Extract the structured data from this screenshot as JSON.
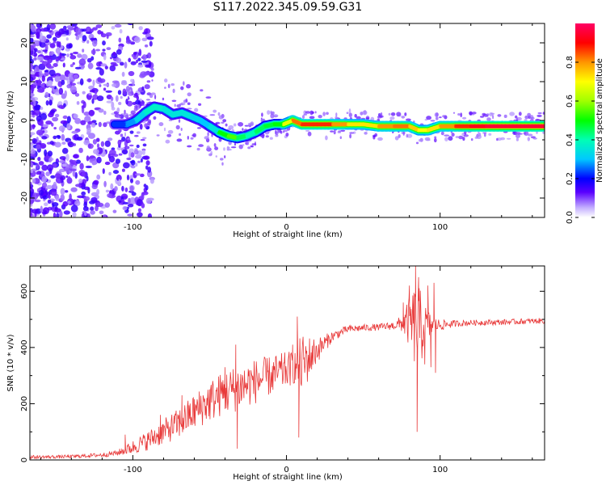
{
  "title": "S117.2022.345.09.59.G31",
  "colors": {
    "signal": "#ff0000",
    "snr_line": "#e83a3a",
    "axis": "#000000"
  },
  "chart_data": [
    {
      "type": "heatmap",
      "xlabel": "Height of straight line (km)",
      "ylabel": "Frequency (Hz)",
      "xlim": [
        -167,
        168
      ],
      "ylim": [
        -25,
        25
      ],
      "x_ticks": [
        -100,
        0,
        100
      ],
      "y_ticks": [
        -20,
        -10,
        0,
        10,
        20
      ],
      "colorbar": {
        "label": "Normalized spectral amplitude",
        "range": [
          0,
          1
        ],
        "ticks": [
          "0.0",
          "0.2",
          "0.4",
          "0.6",
          "0.8"
        ]
      },
      "ridge": {
        "x": [
          -112,
          -104,
          -98,
          -92,
          -86,
          -80,
          -74,
          -68,
          -62,
          -56,
          -50,
          -44,
          -38,
          -32,
          -26,
          -20,
          -14,
          -8,
          -2,
          4,
          10,
          20,
          30,
          40,
          50,
          60,
          70,
          80,
          86,
          92,
          100,
          110,
          120,
          130,
          140,
          150,
          160,
          168
        ],
        "y": [
          -1,
          -1,
          0,
          2,
          3.5,
          3,
          1.5,
          2,
          1,
          0,
          -1.5,
          -3,
          -4,
          -4.5,
          -4,
          -3,
          -1.5,
          -1,
          -1,
          0,
          -1,
          -1,
          -1,
          -1,
          -1,
          -1.5,
          -1.5,
          -1.5,
          -2.5,
          -2.5,
          -1.5,
          -1.5,
          -1.5,
          -1.5,
          -1.5,
          -1.5,
          -1.5,
          -1.5
        ],
        "amplitude": [
          0.2,
          0.25,
          0.3,
          0.35,
          0.4,
          0.35,
          0.35,
          0.35,
          0.35,
          0.3,
          0.3,
          0.4,
          0.6,
          0.5,
          0.4,
          0.4,
          0.5,
          0.45,
          0.55,
          0.8,
          0.85,
          0.9,
          0.85,
          0.75,
          0.7,
          0.75,
          0.85,
          0.8,
          0.7,
          0.7,
          0.75,
          0.85,
          0.9,
          0.95,
          0.95,
          0.95,
          0.95,
          0.95
        ]
      }
    },
    {
      "type": "line",
      "xlabel": "Height of straight line (km)",
      "ylabel": "SNR (10 * v/v)",
      "xlim": [
        -167,
        168
      ],
      "ylim": [
        0,
        690
      ],
      "x_ticks": [
        -100,
        0,
        100
      ],
      "y_ticks": [
        0,
        200,
        400,
        600
      ],
      "series": [
        {
          "x": [
            -167,
            -140,
            -120,
            -110,
            -100,
            -90,
            -80,
            -70,
            -60,
            -50,
            -40,
            -30,
            -20,
            -10,
            0,
            5,
            10,
            20,
            30,
            40,
            50,
            60,
            70,
            75,
            80,
            85,
            90,
            95,
            100,
            110,
            120,
            140,
            168
          ],
          "y": [
            10,
            12,
            18,
            25,
            45,
            70,
            100,
            130,
            170,
            210,
            240,
            260,
            280,
            300,
            320,
            330,
            340,
            390,
            440,
            465,
            470,
            472,
            478,
            485,
            490,
            470,
            470,
            480,
            480,
            485,
            488,
            490,
            495
          ],
          "noise": [
            6,
            6,
            8,
            10,
            25,
            35,
            45,
            55,
            65,
            75,
            80,
            85,
            80,
            70,
            65,
            60,
            110,
            45,
            18,
            14,
            12,
            12,
            15,
            30,
            90,
            170,
            90,
            30,
            20,
            12,
            10,
            10,
            10
          ],
          "spikes": [
            {
              "x": -105,
              "y": 90
            },
            {
              "x": -82,
              "y": 160
            },
            {
              "x": -68,
              "y": 230
            },
            {
              "x": -60,
              "y": 190
            },
            {
              "x": -44,
              "y": 280
            },
            {
              "x": -40,
              "y": 330
            },
            {
              "x": -33,
              "y": 410
            },
            {
              "x": -32,
              "y": 40
            },
            {
              "x": -22,
              "y": 300
            },
            {
              "x": -13,
              "y": 300
            },
            {
              "x": -5,
              "y": 320
            },
            {
              "x": 4,
              "y": 410
            },
            {
              "x": 7,
              "y": 510
            },
            {
              "x": 8,
              "y": 80
            },
            {
              "x": 76,
              "y": 560
            },
            {
              "x": 80,
              "y": 620
            },
            {
              "x": 84,
              "y": 690
            },
            {
              "x": 85,
              "y": 100
            },
            {
              "x": 86,
              "y": 650
            },
            {
              "x": 90,
              "y": 340
            },
            {
              "x": 92,
              "y": 620
            },
            {
              "x": 94,
              "y": 330
            },
            {
              "x": 96,
              "y": 630
            },
            {
              "x": 97,
              "y": 310
            }
          ]
        }
      ]
    }
  ]
}
